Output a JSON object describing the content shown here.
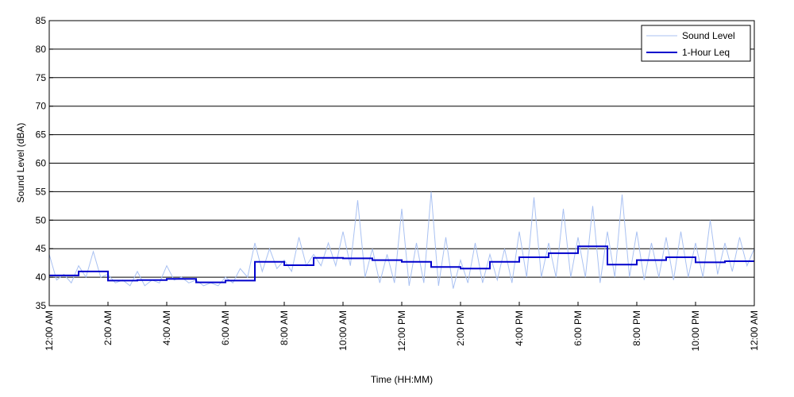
{
  "chart_data": {
    "type": "line",
    "xlabel": "Time (HH:MM)",
    "ylabel": "Sound Level (dBA)",
    "ylim": [
      35,
      85
    ],
    "yticks": [
      35,
      40,
      45,
      50,
      55,
      60,
      65,
      70,
      75,
      80,
      85
    ],
    "xlim": [
      0,
      24
    ],
    "xticks": [
      0,
      2,
      4,
      6,
      8,
      10,
      12,
      14,
      16,
      18,
      20,
      22,
      24
    ],
    "xtick_labels": [
      "12:00 AM",
      "2:00 AM",
      "4:00 AM",
      "6:00 AM",
      "8:00 AM",
      "10:00 AM",
      "12:00 PM",
      "2:00 PM",
      "4:00 PM",
      "6:00 PM",
      "8:00 PM",
      "10:00 PM",
      "12:00 AM"
    ],
    "grid": "horizontal",
    "legend_position": "top-right",
    "series": [
      {
        "name": "Sound Level",
        "color": "#a9c1f2",
        "style": "thin-line",
        "x": [
          0,
          0.25,
          0.5,
          0.75,
          1,
          1.25,
          1.5,
          1.75,
          2,
          2.25,
          2.5,
          2.75,
          3,
          3.25,
          3.5,
          3.75,
          4,
          4.25,
          4.5,
          4.75,
          5,
          5.25,
          5.5,
          5.75,
          6,
          6.25,
          6.5,
          6.75,
          7,
          7.25,
          7.5,
          7.75,
          8,
          8.25,
          8.5,
          8.75,
          9,
          9.25,
          9.5,
          9.75,
          10,
          10.25,
          10.5,
          10.75,
          11,
          11.25,
          11.5,
          11.75,
          12,
          12.25,
          12.5,
          12.75,
          13,
          13.25,
          13.5,
          13.75,
          14,
          14.25,
          14.5,
          14.75,
          15,
          15.25,
          15.5,
          15.75,
          16,
          16.25,
          16.5,
          16.75,
          17,
          17.25,
          17.5,
          17.75,
          18,
          18.25,
          18.5,
          18.75,
          19,
          19.25,
          19.5,
          19.75,
          20,
          20.25,
          20.5,
          20.75,
          21,
          21.25,
          21.5,
          21.75,
          22,
          22.25,
          22.5,
          22.75,
          23,
          23.25,
          23.5,
          23.75,
          24
        ],
        "values": [
          44,
          39.5,
          40.5,
          39,
          42,
          40,
          44.5,
          40,
          40.5,
          39,
          39.5,
          38.5,
          41,
          38.5,
          39.5,
          39,
          42,
          39.5,
          40,
          39,
          39.5,
          38.5,
          39,
          38.5,
          40,
          39,
          41.5,
          40,
          46,
          41,
          45,
          41.5,
          43,
          41,
          47,
          42,
          44,
          42,
          46,
          42,
          48,
          42,
          53.5,
          40,
          45,
          39,
          44,
          39,
          52,
          38.5,
          46,
          39,
          55,
          38.5,
          47,
          38,
          43,
          39,
          46,
          39,
          44,
          39.5,
          45,
          39,
          48,
          40,
          54,
          40,
          46,
          40,
          52,
          40,
          47,
          40,
          52.5,
          39,
          48,
          40,
          54.5,
          40,
          48,
          39.5,
          46,
          40,
          47,
          39.5,
          48,
          40,
          46,
          40,
          50,
          40.5,
          46,
          41,
          47,
          42,
          45
        ]
      },
      {
        "name": "1-Hour Leq",
        "color": "#0000cc",
        "style": "step",
        "x": [
          0,
          1,
          2,
          3,
          4,
          5,
          6,
          7,
          8,
          9,
          10,
          11,
          12,
          13,
          14,
          15,
          16,
          17,
          18,
          19,
          20,
          21,
          22,
          23
        ],
        "values": [
          40.3,
          41.0,
          39.4,
          39.5,
          39.7,
          39.1,
          39.4,
          42.7,
          42.1,
          43.4,
          43.3,
          43.0,
          42.7,
          41.8,
          41.5,
          42.7,
          43.5,
          44.2,
          45.4,
          42.2,
          43.0,
          43.5,
          42.6,
          42.8
        ]
      }
    ]
  }
}
